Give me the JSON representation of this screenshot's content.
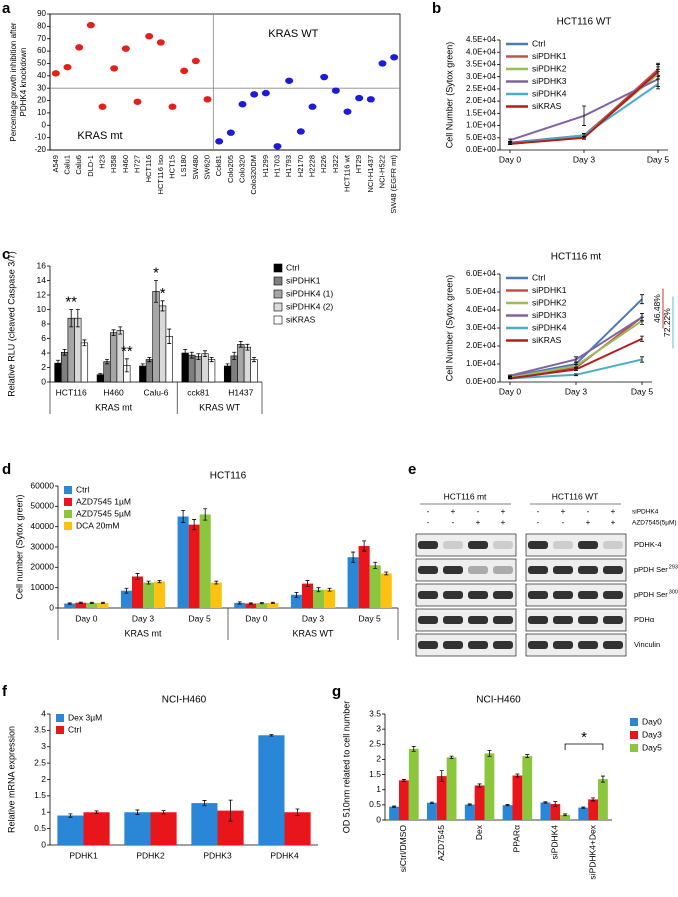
{
  "chart_data": [
    {
      "panel": "a",
      "type": "dot",
      "ylabel": [
        "Percentage growth  inhibition after",
        "PDHK4 knockdown"
      ],
      "categories": [
        "A549",
        "Calu1",
        "Calu6",
        "DLD-1",
        "H23",
        "H358",
        "H460",
        "H727",
        "HCT116",
        "HCT116 Iso",
        "HCT15",
        "LS180",
        "SW480",
        "SW620",
        "Cck81",
        "Colo205",
        "Colo320",
        "Colo320DM",
        "H1299",
        "H1703",
        "H1793",
        "H2170",
        "H2228",
        "H226",
        "H322",
        "HCT116 wt",
        "HT29",
        "NCI-H1437",
        "NCI-H522",
        "SW48 (EGFR mt)"
      ],
      "series": [
        {
          "name": "KRAS mt",
          "color": "#e3211c",
          "values": [
            42,
            47,
            63,
            81,
            15,
            46,
            62,
            19,
            72,
            67,
            15,
            44,
            52,
            21,
            null,
            null,
            null,
            null,
            null,
            null,
            null,
            null,
            null,
            null,
            null,
            null,
            null,
            null,
            null,
            null
          ]
        },
        {
          "name": "KRAS WT",
          "color": "#1c1cd8",
          "values": [
            null,
            null,
            null,
            null,
            null,
            null,
            null,
            null,
            null,
            null,
            null,
            null,
            null,
            null,
            -13,
            -6,
            17,
            25,
            26,
            -17,
            36,
            -5,
            15,
            39,
            28,
            11,
            22,
            21,
            50,
            55
          ]
        }
      ],
      "ylim": [
        -20,
        90
      ],
      "yticks": [
        -20,
        -10,
        0,
        10,
        20,
        30,
        40,
        50,
        60,
        70,
        80,
        90
      ],
      "refline": 30
    },
    {
      "panel": "b",
      "type": "line",
      "title": "HCT116 WT",
      "ylabel": "Cell Number (Sytox green)",
      "categories": [
        "Day 0",
        "Day 3",
        "Day 5"
      ],
      "legend": "upper left",
      "series": [
        {
          "name": "Ctrl",
          "color": "#4a7ab5",
          "values": [
            3000,
            6000,
            32000
          ],
          "errors": [
            300,
            800,
            2000
          ]
        },
        {
          "name": "siPDHK1",
          "color": "#c0504d",
          "values": [
            2500,
            5500,
            33000
          ],
          "errors": [
            300,
            600,
            2500
          ]
        },
        {
          "name": "siPDHK2",
          "color": "#9bbb59",
          "values": [
            2500,
            5500,
            31000
          ],
          "errors": [
            300,
            600,
            2000
          ]
        },
        {
          "name": "siPDHK3",
          "color": "#8064a2",
          "values": [
            4000,
            14000,
            29000
          ],
          "errors": [
            500,
            4000,
            3000
          ]
        },
        {
          "name": "siPDHK4",
          "color": "#4bacc6",
          "values": [
            2500,
            6000,
            27000
          ],
          "errors": [
            300,
            600,
            2000
          ]
        },
        {
          "name": "siKRAS",
          "color": "#b01e1e",
          "values": [
            2500,
            5000,
            32000
          ],
          "errors": [
            300,
            600,
            3000
          ]
        }
      ],
      "ylim": [
        0,
        45000
      ],
      "yticks": [
        {
          "value": 0,
          "label": "0.0E+00"
        },
        {
          "value": 5000,
          "label": "5.0E+03"
        },
        {
          "value": 10000,
          "label": "1.0E+04"
        },
        {
          "value": 15000,
          "label": "1.5E+04"
        },
        {
          "value": 20000,
          "label": "2.0E+04"
        },
        {
          "value": 25000,
          "label": "2.5E+04"
        },
        {
          "value": 30000,
          "label": "3.0E+04"
        },
        {
          "value": 35000,
          "label": "3.5E+04"
        },
        {
          "value": 40000,
          "label": "4.0E+04"
        },
        {
          "value": 45000,
          "label": "4.5E+04"
        }
      ]
    },
    {
      "panel": "c",
      "type": "bar",
      "ylabel": "Relative RLU (cleaved Caspase 3/7)",
      "categories": [
        "HCT116",
        "H460",
        "Calu-6",
        "cck81",
        "H1437"
      ],
      "groups": [
        {
          "label": "KRAS mt",
          "count": 3
        },
        {
          "label": "KRAS WT",
          "count": 2
        }
      ],
      "legend": "right",
      "bar_stroke": "#000000",
      "series": [
        {
          "name": "Ctrl",
          "color": "#000000",
          "values": [
            2.6,
            1.0,
            2.2,
            4.0,
            2.2
          ],
          "errors": [
            0.4,
            0.15,
            0.3,
            0.5,
            0.3
          ]
        },
        {
          "name": "siPDHK1",
          "color": "#7f7f7f",
          "values": [
            4.1,
            2.8,
            3.1,
            3.7,
            3.6
          ],
          "errors": [
            0.4,
            0.3,
            0.3,
            0.4,
            0.5
          ]
        },
        {
          "name": "siPDHK4 (1)",
          "color": "#a6a6a6",
          "values": [
            8.8,
            6.8,
            12.5,
            3.5,
            5.2
          ],
          "errors": [
            1.2,
            0.4,
            1.5,
            0.4,
            0.4
          ]
        },
        {
          "name": "siPDHK4 (2)",
          "color": "#d9d9d9",
          "values": [
            8.8,
            7.1,
            10.5,
            3.9,
            4.8
          ],
          "errors": [
            1.2,
            0.5,
            0.7,
            0.4,
            0.4
          ]
        },
        {
          "name": "siKRAS",
          "color": "#ffffff",
          "values": [
            5.4,
            2.3,
            6.3,
            3.1,
            3.1
          ],
          "errors": [
            0.4,
            0.9,
            1.0,
            0.3,
            0.3
          ]
        }
      ],
      "ylim": [
        0,
        16
      ],
      "yticks": [
        0,
        2,
        4,
        6,
        8,
        10,
        12,
        14,
        16
      ],
      "annotations": [
        {
          "text": "**",
          "category": 0,
          "series": 2
        },
        {
          "text": "**",
          "category": 1,
          "series": 4
        },
        {
          "text": "*",
          "category": 2,
          "series": 2
        },
        {
          "text": "*",
          "category": 2,
          "series": 3
        }
      ]
    },
    {
      "panel": "",
      "type": "line",
      "title": "HCT116 mt",
      "ylabel": "Cell Number (Sytox green)",
      "categories": [
        "Day 0",
        "Day 3",
        "Day 5"
      ],
      "legend": "upper left",
      "series": [
        {
          "name": "Ctrl",
          "color": "#4a7ab5",
          "values": [
            3000,
            10000,
            46000
          ],
          "errors": [
            300,
            1000,
            2500
          ]
        },
        {
          "name": "siPDHK1",
          "color": "#c0504d",
          "values": [
            2500,
            8000,
            36000
          ],
          "errors": [
            300,
            800,
            2000
          ]
        },
        {
          "name": "siPDHK2",
          "color": "#9bbb59",
          "values": [
            2500,
            9000,
            34000
          ],
          "errors": [
            300,
            800,
            2000
          ]
        },
        {
          "name": "siPDHK3",
          "color": "#8064a2",
          "values": [
            3500,
            12500,
            36000
          ],
          "errors": [
            400,
            1500,
            2000
          ]
        },
        {
          "name": "siPDHK4",
          "color": "#4bacc6",
          "values": [
            2000,
            4000,
            12500
          ],
          "errors": [
            200,
            500,
            1500
          ]
        },
        {
          "name": "siKRAS",
          "color": "#b01e1e",
          "values": [
            2000,
            7000,
            24000
          ],
          "errors": [
            200,
            700,
            1500
          ]
        }
      ],
      "ylim": [
        0,
        60000
      ],
      "yticks": [
        {
          "value": 0,
          "label": "0.0E+00"
        },
        {
          "value": 10000,
          "label": "1.0E+04"
        },
        {
          "value": 20000,
          "label": "2.0E+04"
        },
        {
          "value": 30000,
          "label": "3.0E+04"
        },
        {
          "value": 40000,
          "label": "4.0E+04"
        },
        {
          "value": 50000,
          "label": "5.0E+04"
        },
        {
          "value": 60000,
          "label": "6.0E+04"
        }
      ],
      "annotations": [
        {
          "text": "46.48%",
          "color": "#c00000"
        },
        {
          "text": "72.22%",
          "color": "#2fb0d0"
        }
      ]
    },
    {
      "panel": "d",
      "type": "bar",
      "title": "HCT116",
      "ylabel": "Cell number (Sytox green)",
      "categories": [
        "Day 0",
        "Day 3",
        "Day 5",
        "Day 0",
        "Day 3",
        "Day 5"
      ],
      "groups": [
        {
          "label": "KRAS mt",
          "count": 3
        },
        {
          "label": "KRAS WT",
          "count": 3
        }
      ],
      "legend": "upper left",
      "series": [
        {
          "name": "Ctrl",
          "color": "#2a86d6",
          "values": [
            2200,
            8500,
            45000,
            2500,
            6500,
            25000
          ],
          "errors": [
            300,
            1200,
            3000,
            500,
            1200,
            2500
          ]
        },
        {
          "name": "AZD7545 1µM",
          "color": "#e8161b",
          "values": [
            2600,
            15500,
            41000,
            2200,
            12000,
            30500
          ],
          "errors": [
            300,
            1500,
            2500,
            300,
            1500,
            2500
          ]
        },
        {
          "name": "AZD7545 5µM",
          "color": "#8cc63e",
          "values": [
            2500,
            12500,
            46000,
            2400,
            9000,
            21000
          ],
          "errors": [
            300,
            700,
            2800,
            300,
            1000,
            1500
          ]
        },
        {
          "name": "DCA 20mM",
          "color": "#fcc20f",
          "values": [
            2500,
            13000,
            12500,
            2500,
            9000,
            17000
          ],
          "errors": [
            300,
            600,
            700,
            300,
            700,
            700
          ]
        }
      ],
      "ylim": [
        0,
        60000
      ],
      "yticks": [
        0,
        10000,
        20000,
        30000,
        40000,
        50000,
        60000
      ]
    },
    {
      "panel": "e",
      "type": "blot",
      "groups": [
        "HCT116 mt",
        "HCT116 WT"
      ],
      "conditions": [
        {
          "label": "siPDHK4",
          "signs": [
            "-",
            "+",
            "-",
            "+",
            "-",
            "+",
            "-",
            "+"
          ]
        },
        {
          "label": "AZD7545(5µM)",
          "signs": [
            "-",
            "-",
            "+",
            "+",
            "-",
            "-",
            "+",
            "+"
          ]
        }
      ],
      "bands": [
        {
          "label": "PDHK-4"
        },
        {
          "label": "pPDH Ser",
          "sup": "293"
        },
        {
          "label": "pPDH Ser",
          "sup": "300"
        },
        {
          "label": "PDHα"
        },
        {
          "label": "Vinculin"
        }
      ]
    },
    {
      "panel": "f",
      "type": "bar",
      "title": "NCI-H460",
      "ylabel": "Relative mRNA expression",
      "categories": [
        "PDHK1",
        "PDHK2",
        "PDHK3",
        "PDHK4"
      ],
      "legend": "upper left",
      "series": [
        {
          "name": "Dex 3µM",
          "color": "#2a86d6",
          "values": [
            0.9,
            1.0,
            1.28,
            3.35
          ],
          "errors": [
            0.05,
            0.07,
            0.08,
            0.02
          ]
        },
        {
          "name": "Ctrl",
          "color": "#e8161b",
          "values": [
            1.0,
            1.0,
            1.05,
            1.0
          ],
          "errors": [
            0.04,
            0.05,
            0.32,
            0.1
          ]
        }
      ],
      "ylim": [
        0,
        4
      ],
      "yticks": [
        0,
        0.5,
        1,
        1.5,
        2,
        2.5,
        3,
        3.5,
        4
      ]
    },
    {
      "panel": "g",
      "type": "bar",
      "title": "NCI-H460",
      "ylabel": "OD 510nm related to cell number",
      "categories": [
        "siCtrl/DMSO",
        "AZD7545",
        "Dex",
        "PPARα",
        "siPDHK4",
        "siPDHK4+Dex"
      ],
      "legend": "right",
      "series": [
        {
          "name": "Day0",
          "color": "#2a86d6",
          "values": [
            0.44,
            0.57,
            0.51,
            0.49,
            0.58,
            0.41
          ],
          "errors": [
            0.02,
            0.02,
            0.02,
            0.02,
            0.02,
            0.02
          ]
        },
        {
          "name": "Day3",
          "color": "#e8161b",
          "values": [
            1.31,
            1.45,
            1.14,
            1.47,
            0.53,
            0.68
          ],
          "errors": [
            0.03,
            0.18,
            0.05,
            0.05,
            0.08,
            0.05
          ]
        },
        {
          "name": "Day5",
          "color": "#8cc63e",
          "values": [
            2.35,
            2.07,
            2.2,
            2.11,
            0.17,
            1.35
          ],
          "errors": [
            0.08,
            0.04,
            0.1,
            0.05,
            0.03,
            0.1
          ]
        }
      ],
      "ylim": [
        0,
        3.5
      ],
      "yticks": [
        0,
        0.5,
        1,
        1.5,
        2,
        2.5,
        3,
        3.5
      ],
      "annotations": [
        {
          "text": "*",
          "category": 5,
          "series": 2,
          "from_category": 4
        }
      ]
    }
  ]
}
